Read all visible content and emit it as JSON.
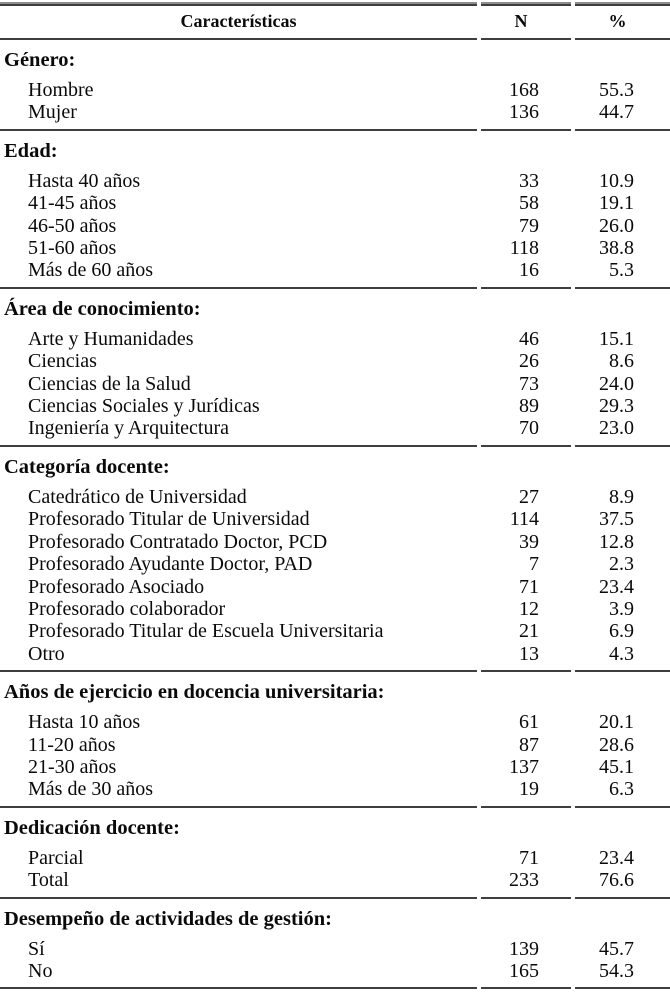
{
  "table": {
    "headers": {
      "caracteristicas": "Características",
      "n": "N",
      "pct": "%"
    },
    "sections": [
      {
        "title": "Género:",
        "rows": [
          [
            "Hombre",
            "168",
            "55.3"
          ],
          [
            "Mujer",
            "136",
            "44.7"
          ]
        ]
      },
      {
        "title": "Edad:",
        "rows": [
          [
            "Hasta 40 años",
            "33",
            "10.9"
          ],
          [
            "41-45 años",
            "58",
            "19.1"
          ],
          [
            "46-50 años",
            "79",
            "26.0"
          ],
          [
            "51-60 años",
            "118",
            "38.8"
          ],
          [
            "Más de 60 años",
            "16",
            "5.3"
          ]
        ]
      },
      {
        "title": "Área de conocimiento:",
        "rows": [
          [
            "Arte y Humanidades",
            "46",
            "15.1"
          ],
          [
            "Ciencias",
            "26",
            "8.6"
          ],
          [
            "Ciencias de la Salud",
            "73",
            "24.0"
          ],
          [
            "Ciencias Sociales y Jurídicas",
            "89",
            "29.3"
          ],
          [
            "Ingeniería y Arquitectura",
            "70",
            "23.0"
          ]
        ]
      },
      {
        "title": "Categoría docente:",
        "rows": [
          [
            "Catedrático de Universidad",
            "27",
            "8.9"
          ],
          [
            "Profesorado Titular de Universidad",
            "114",
            "37.5"
          ],
          [
            "Profesorado Contratado Doctor, PCD",
            "39",
            "12.8"
          ],
          [
            "Profesorado Ayudante Doctor, PAD",
            "7",
            "2.3"
          ],
          [
            "Profesorado Asociado",
            "71",
            "23.4"
          ],
          [
            "Profesorado colaborador",
            "12",
            "3.9"
          ],
          [
            "Profesorado Titular de Escuela Universitaria",
            "21",
            "6.9"
          ],
          [
            "Otro",
            "13",
            "4.3"
          ]
        ]
      },
      {
        "title": "Años de ejercicio en docencia universitaria:",
        "rows": [
          [
            "Hasta 10 años",
            "61",
            "20.1"
          ],
          [
            "11-20 años",
            "87",
            "28.6"
          ],
          [
            "21-30 años",
            "137",
            "45.1"
          ],
          [
            "Más de 30 años",
            "19",
            "6.3"
          ]
        ]
      },
      {
        "title": "Dedicación docente:",
        "rows": [
          [
            "Parcial",
            "71",
            "23.4"
          ],
          [
            "Total",
            "233",
            "76.6"
          ]
        ]
      },
      {
        "title": "Desempeño de actividades de gestión:",
        "rows": [
          [
            "Sí",
            "139",
            "45.7"
          ],
          [
            "No",
            "165",
            "54.3"
          ]
        ]
      }
    ]
  },
  "colors": {
    "rule": "#3f3f3f",
    "text": "#0a0a0a",
    "background": "#ffffff"
  }
}
